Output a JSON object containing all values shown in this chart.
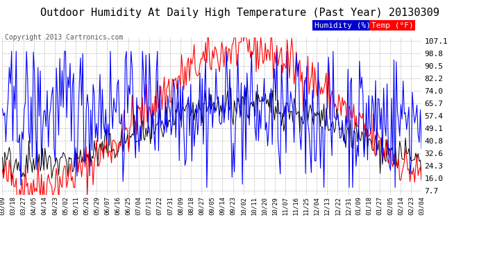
{
  "title": "Outdoor Humidity At Daily High Temperature (Past Year) 20130309",
  "copyright": "Copyright 2013 Cartronics.com",
  "yticks": [
    7.7,
    16.0,
    24.3,
    32.6,
    40.8,
    49.1,
    57.4,
    65.7,
    74.0,
    82.2,
    90.5,
    98.8,
    107.1
  ],
  "ymin": 5.0,
  "ymax": 109.0,
  "legend_humidity_label": "Humidity (%)",
  "legend_temp_label": "Temp (°F)",
  "humidity_color": "#0000ff",
  "temp_color": "#ff0000",
  "black_color": "#000000",
  "background_color": "#ffffff",
  "grid_color": "#aaaaaa",
  "title_fontsize": 11,
  "copyright_fontsize": 7,
  "xtick_labels": [
    "03/09",
    "03/18",
    "03/27",
    "04/05",
    "04/14",
    "04/23",
    "05/02",
    "05/11",
    "05/20",
    "05/29",
    "06/07",
    "06/16",
    "06/25",
    "07/04",
    "07/13",
    "07/22",
    "07/31",
    "08/09",
    "08/18",
    "08/27",
    "09/05",
    "09/14",
    "09/23",
    "10/02",
    "10/11",
    "10/20",
    "10/29",
    "11/07",
    "11/16",
    "11/25",
    "12/04",
    "12/13",
    "12/22",
    "12/31",
    "01/09",
    "01/18",
    "01/27",
    "02/05",
    "02/14",
    "02/23",
    "03/04"
  ],
  "num_points": 366,
  "seed": 42
}
